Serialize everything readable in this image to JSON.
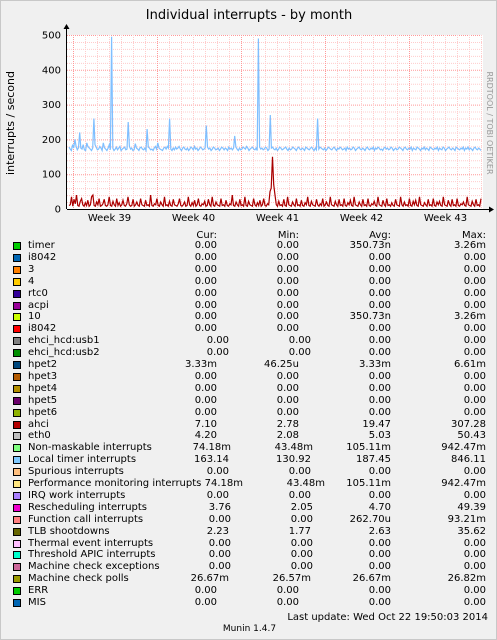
{
  "chart_data": {
    "type": "line",
    "title": "Individual interrupts - by month",
    "ylabel": "interrupts / second",
    "ylim": [
      0,
      500
    ],
    "yticks": [
      "0",
      "100",
      "200",
      "300",
      "400",
      "500"
    ],
    "xticks": [
      "Week 39",
      "Week 40",
      "Week 41",
      "Week 42",
      "Week 43"
    ],
    "vertical_credit": "RRDTOOL / TOBI OETIKER",
    "grid": true,
    "series": [
      {
        "name": "Local timer interrupts",
        "color": "#7fbfff",
        "values": [
          178,
          172,
          168,
          185,
          175,
          200,
          180,
          170,
          176,
          220,
          175,
          172,
          185,
          170,
          168,
          190,
          180,
          176,
          172,
          168,
          175,
          260,
          185,
          178,
          170,
          172,
          180,
          175,
          168,
          190,
          176,
          172,
          168,
          175,
          185,
          170,
          495,
          175,
          168,
          172,
          178,
          170,
          175,
          180,
          168,
          172,
          175,
          178,
          170,
          172,
          250,
          180,
          172,
          175,
          168,
          170,
          188,
          175,
          172,
          168,
          176,
          178,
          172,
          170,
          175,
          168,
          230,
          178,
          175,
          170,
          172,
          168,
          175,
          180,
          172,
          190,
          175,
          172,
          170,
          168,
          175,
          178,
          172,
          180,
          175,
          260,
          172,
          168,
          175,
          170,
          178,
          172,
          175,
          180,
          172,
          168,
          175,
          178,
          172,
          170,
          175,
          168,
          172,
          178,
          175,
          170,
          180,
          172,
          175,
          168,
          172,
          178,
          175,
          170,
          172,
          175,
          240,
          178,
          172,
          175,
          168,
          172,
          178,
          175,
          170,
          172,
          175,
          168,
          172,
          178,
          175,
          170,
          175,
          172,
          168,
          178,
          172,
          175,
          170,
          175,
          210,
          178,
          172,
          168,
          175,
          170,
          172,
          178,
          175,
          172,
          180,
          175,
          168,
          172,
          175,
          178,
          172,
          170,
          175,
          168,
          490,
          178,
          172,
          175,
          170,
          172,
          178,
          175,
          168,
          172,
          270,
          175,
          178,
          172,
          170,
          175,
          168,
          172,
          178,
          175,
          170,
          172,
          175,
          178,
          172,
          168,
          175,
          170,
          172,
          178,
          175,
          172,
          168,
          175,
          178,
          172,
          170,
          175,
          172,
          168,
          178,
          175,
          172,
          170,
          175,
          178,
          172,
          168,
          175,
          170,
          260,
          172,
          178,
          175,
          172,
          170,
          175,
          168,
          172,
          178,
          175,
          172,
          170,
          175,
          178,
          172,
          168,
          175,
          172,
          178,
          175,
          170,
          172,
          175,
          168,
          178,
          172,
          175,
          170,
          172,
          178,
          175,
          168,
          172,
          175,
          178,
          172,
          170,
          175,
          172,
          168,
          175,
          178,
          172,
          170,
          175,
          172,
          178,
          168,
          175,
          172,
          178,
          175,
          170,
          172,
          168,
          175,
          178,
          172,
          175,
          170,
          172,
          178,
          175,
          168,
          172,
          175,
          170,
          172,
          178,
          175,
          172,
          168,
          175,
          178,
          172,
          170,
          175,
          172,
          178,
          168,
          175,
          172,
          170,
          178,
          175,
          172,
          168,
          175,
          172,
          178,
          170,
          175,
          172,
          168,
          178,
          175,
          172,
          170,
          175,
          172,
          178,
          168,
          175,
          172,
          170,
          178,
          175,
          168,
          172,
          175,
          178,
          172,
          170,
          175,
          172,
          168,
          178,
          175,
          172,
          170,
          175,
          172,
          178,
          168,
          175,
          172,
          178,
          170,
          175,
          172,
          168,
          175,
          178,
          172,
          170,
          175,
          172,
          168
        ]
      },
      {
        "name": "ahci",
        "color": "#aa0000",
        "values": [
          10,
          12,
          35,
          8,
          28,
          15,
          40,
          10,
          8,
          22,
          30,
          12,
          8,
          18,
          10,
          25,
          8,
          12,
          35,
          40,
          10,
          8,
          20,
          12,
          30,
          8,
          10,
          15,
          28,
          10,
          8,
          12,
          35,
          10,
          8,
          22,
          12,
          8,
          30,
          10,
          18,
          8,
          12,
          25,
          10,
          8,
          15,
          35,
          12,
          8,
          10,
          28,
          8,
          12,
          20,
          10,
          8,
          30,
          12,
          10,
          8,
          25,
          10,
          12,
          8,
          40,
          10,
          8,
          15,
          12,
          30,
          10,
          8,
          20,
          12,
          8,
          35,
          10,
          12,
          8,
          22,
          10,
          8,
          28,
          12,
          10,
          8,
          15,
          30,
          10,
          8,
          12,
          20,
          8,
          10,
          35,
          12,
          8,
          18,
          10,
          25,
          8,
          12,
          30,
          10,
          8,
          15,
          12,
          22,
          8,
          10,
          28,
          12,
          8,
          35,
          10,
          8,
          20,
          12,
          10,
          8,
          30,
          10,
          12,
          8,
          25,
          10,
          8,
          15,
          12,
          40,
          10,
          8,
          20,
          12,
          8,
          28,
          10,
          12,
          8,
          35,
          10,
          8,
          22,
          12,
          10,
          8,
          30,
          12,
          8,
          18,
          10,
          25,
          8,
          12,
          30,
          10,
          8,
          15,
          12,
          50,
          60,
          150,
          70,
          40,
          12,
          8,
          22,
          10,
          12,
          8,
          28,
          10,
          8,
          35,
          12,
          10,
          8,
          20,
          12,
          8,
          30,
          10,
          12,
          8,
          25,
          10,
          8,
          18,
          12,
          35,
          10,
          8,
          22,
          12,
          10,
          8,
          28,
          12,
          8,
          15,
          10,
          30,
          8,
          12,
          20,
          10,
          8,
          35,
          12,
          10,
          8,
          22,
          12,
          8,
          28,
          10,
          12,
          8,
          30,
          10,
          8,
          18,
          12,
          25,
          10,
          8,
          35,
          12,
          10,
          8,
          20,
          12,
          8,
          28,
          10,
          12,
          8,
          30,
          10,
          8,
          15,
          12,
          22,
          10,
          8,
          35,
          12,
          10,
          8,
          25,
          12,
          8,
          30,
          10,
          12,
          8,
          18,
          10,
          8,
          28,
          12,
          10,
          8,
          35,
          12,
          8,
          20,
          10,
          12,
          8,
          30,
          10,
          8,
          22,
          12,
          25,
          10,
          8,
          35,
          12,
          10,
          8,
          18,
          12,
          8,
          28,
          10,
          12,
          8,
          30,
          10,
          8,
          20,
          12,
          22,
          10,
          8,
          35,
          12,
          10,
          8,
          25,
          12,
          8,
          28,
          10,
          12,
          8,
          30,
          10,
          8,
          15,
          12,
          20,
          10,
          8,
          35,
          12,
          10,
          8,
          22,
          12,
          8,
          28,
          10,
          12,
          8,
          30
        ]
      }
    ]
  },
  "legend": {
    "headers": {
      "cur": "Cur:",
      "min": "Min:",
      "avg": "Avg:",
      "max": "Max:"
    },
    "items": [
      {
        "name": "timer",
        "color": "#00cc00",
        "cur": "0.00",
        "min": "0.00",
        "avg": "350.73n",
        "max": "3.26m"
      },
      {
        "name": "i8042",
        "color": "#0066b3",
        "cur": "0.00",
        "min": "0.00",
        "avg": "0.00",
        "max": "0.00"
      },
      {
        "name": "3",
        "color": "#ff8000",
        "cur": "0.00",
        "min": "0.00",
        "avg": "0.00",
        "max": "0.00"
      },
      {
        "name": "4",
        "color": "#ffcc00",
        "cur": "0.00",
        "min": "0.00",
        "avg": "0.00",
        "max": "0.00"
      },
      {
        "name": "rtc0",
        "color": "#330099",
        "cur": "0.00",
        "min": "0.00",
        "avg": "0.00",
        "max": "0.00"
      },
      {
        "name": "acpi",
        "color": "#990099",
        "cur": "0.00",
        "min": "0.00",
        "avg": "0.00",
        "max": "0.00"
      },
      {
        "name": "10",
        "color": "#ccff00",
        "cur": "0.00",
        "min": "0.00",
        "avg": "350.73n",
        "max": "3.26m"
      },
      {
        "name": "i8042",
        "color": "#ff0000",
        "cur": "0.00",
        "min": "0.00",
        "avg": "0.00",
        "max": "0.00"
      },
      {
        "name": "ehci_hcd:usb1",
        "color": "#808080",
        "cur": "0.00",
        "min": "0.00",
        "avg": "0.00",
        "max": "0.00"
      },
      {
        "name": "ehci_hcd:usb2",
        "color": "#008f00",
        "cur": "0.00",
        "min": "0.00",
        "avg": "0.00",
        "max": "0.00"
      },
      {
        "name": "hpet2",
        "color": "#00487d",
        "cur": "3.33m",
        "min": "46.25u",
        "avg": "3.33m",
        "max": "6.61m"
      },
      {
        "name": "hpet3",
        "color": "#b35a00",
        "cur": "0.00",
        "min": "0.00",
        "avg": "0.00",
        "max": "0.00"
      },
      {
        "name": "hpet4",
        "color": "#b38f00",
        "cur": "0.00",
        "min": "0.00",
        "avg": "0.00",
        "max": "0.00"
      },
      {
        "name": "hpet5",
        "color": "#6b006b",
        "cur": "0.00",
        "min": "0.00",
        "avg": "0.00",
        "max": "0.00"
      },
      {
        "name": "hpet6",
        "color": "#8fb300",
        "cur": "0.00",
        "min": "0.00",
        "avg": "0.00",
        "max": "0.00"
      },
      {
        "name": "ahci",
        "color": "#b30000",
        "cur": "7.10",
        "min": "2.78",
        "avg": "19.47",
        "max": "307.28"
      },
      {
        "name": "eth0",
        "color": "#bebebe",
        "cur": "4.20",
        "min": "2.08",
        "avg": "5.03",
        "max": "50.43"
      },
      {
        "name": "Non-maskable interrupts",
        "color": "#80ff80",
        "cur": "74.18m",
        "min": "43.48m",
        "avg": "105.11m",
        "max": "942.47m"
      },
      {
        "name": "Local timer interrupts",
        "color": "#80c9ff",
        "cur": "163.14",
        "min": "130.92",
        "avg": "187.45",
        "max": "846.11"
      },
      {
        "name": "Spurious interrupts",
        "color": "#ffc080",
        "cur": "0.00",
        "min": "0.00",
        "avg": "0.00",
        "max": "0.00"
      },
      {
        "name": "Performance monitoring interrupts",
        "color": "#ffe680",
        "cur": "74.18m",
        "min": "43.48m",
        "avg": "105.11m",
        "max": "942.47m"
      },
      {
        "name": "IRQ work interrupts",
        "color": "#aa80ff",
        "cur": "0.00",
        "min": "0.00",
        "avg": "0.00",
        "max": "0.00"
      },
      {
        "name": "Rescheduling interrupts",
        "color": "#ee00cc",
        "cur": "3.76",
        "min": "2.05",
        "avg": "4.70",
        "max": "49.39"
      },
      {
        "name": "Function call interrupts",
        "color": "#ff8080",
        "cur": "0.00",
        "min": "0.00",
        "avg": "262.70u",
        "max": "93.21m"
      },
      {
        "name": "TLB shootdowns",
        "color": "#666600",
        "cur": "2.23",
        "min": "1.77",
        "avg": "2.63",
        "max": "35.62"
      },
      {
        "name": "Thermal event interrupts",
        "color": "#ffbfff",
        "cur": "0.00",
        "min": "0.00",
        "avg": "0.00",
        "max": "0.00"
      },
      {
        "name": "Threshold APIC interrupts",
        "color": "#00ffcc",
        "cur": "0.00",
        "min": "0.00",
        "avg": "0.00",
        "max": "0.00"
      },
      {
        "name": "Machine check exceptions",
        "color": "#cc6699",
        "cur": "0.00",
        "min": "0.00",
        "avg": "0.00",
        "max": "0.00"
      },
      {
        "name": "Machine check polls",
        "color": "#999900",
        "cur": "26.67m",
        "min": "26.57m",
        "avg": "26.67m",
        "max": "26.82m"
      },
      {
        "name": "ERR",
        "color": "#00cc00",
        "cur": "0.00",
        "min": "0.00",
        "avg": "0.00",
        "max": "0.00"
      },
      {
        "name": "MIS",
        "color": "#0066b3",
        "cur": "0.00",
        "min": "0.00",
        "avg": "0.00",
        "max": "0.00"
      }
    ]
  },
  "footer": {
    "last_update": "Last update:  Wed Oct 22 19:50:03 2014",
    "version": "Munin 1.4.7"
  }
}
